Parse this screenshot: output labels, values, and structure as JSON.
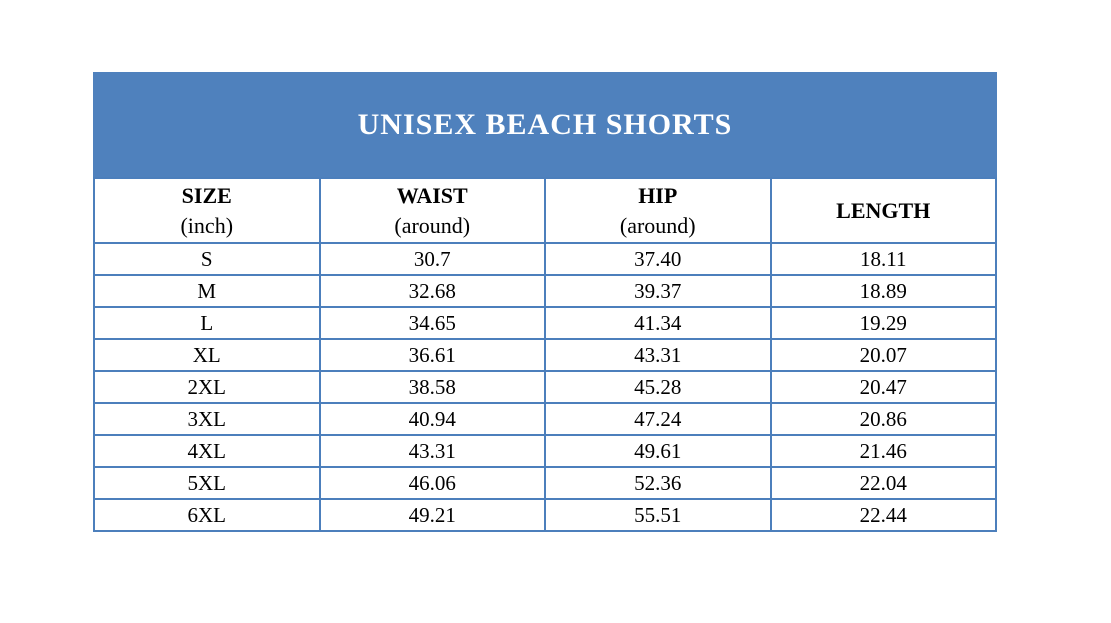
{
  "banner": {
    "title": "UNISEX BEACH SHORTS",
    "bg_color": "#4F81BD",
    "text_color": "#FFFFFF"
  },
  "table": {
    "border_color": "#4C7FBC",
    "columns": [
      {
        "label": "SIZE",
        "sublabel": "(inch)"
      },
      {
        "label": "WAIST",
        "sublabel": "(around)"
      },
      {
        "label": "HIP",
        "sublabel": "(around)"
      },
      {
        "label": "LENGTH",
        "sublabel": ""
      }
    ],
    "rows": [
      {
        "size": "S",
        "waist": "30.7",
        "hip": "37.40",
        "length": "18.11"
      },
      {
        "size": "M",
        "waist": "32.68",
        "hip": "39.37",
        "length": "18.89"
      },
      {
        "size": "L",
        "waist": "34.65",
        "hip": "41.34",
        "length": "19.29"
      },
      {
        "size": "XL",
        "waist": "36.61",
        "hip": "43.31",
        "length": "20.07"
      },
      {
        "size": "2XL",
        "waist": "38.58",
        "hip": "45.28",
        "length": "20.47"
      },
      {
        "size": "3XL",
        "waist": "40.94",
        "hip": "47.24",
        "length": "20.86"
      },
      {
        "size": "4XL",
        "waist": "43.31",
        "hip": "49.61",
        "length": "21.46"
      },
      {
        "size": "5XL",
        "waist": "46.06",
        "hip": "52.36",
        "length": "22.04"
      },
      {
        "size": "6XL",
        "waist": "49.21",
        "hip": "55.51",
        "length": "22.44"
      }
    ]
  }
}
